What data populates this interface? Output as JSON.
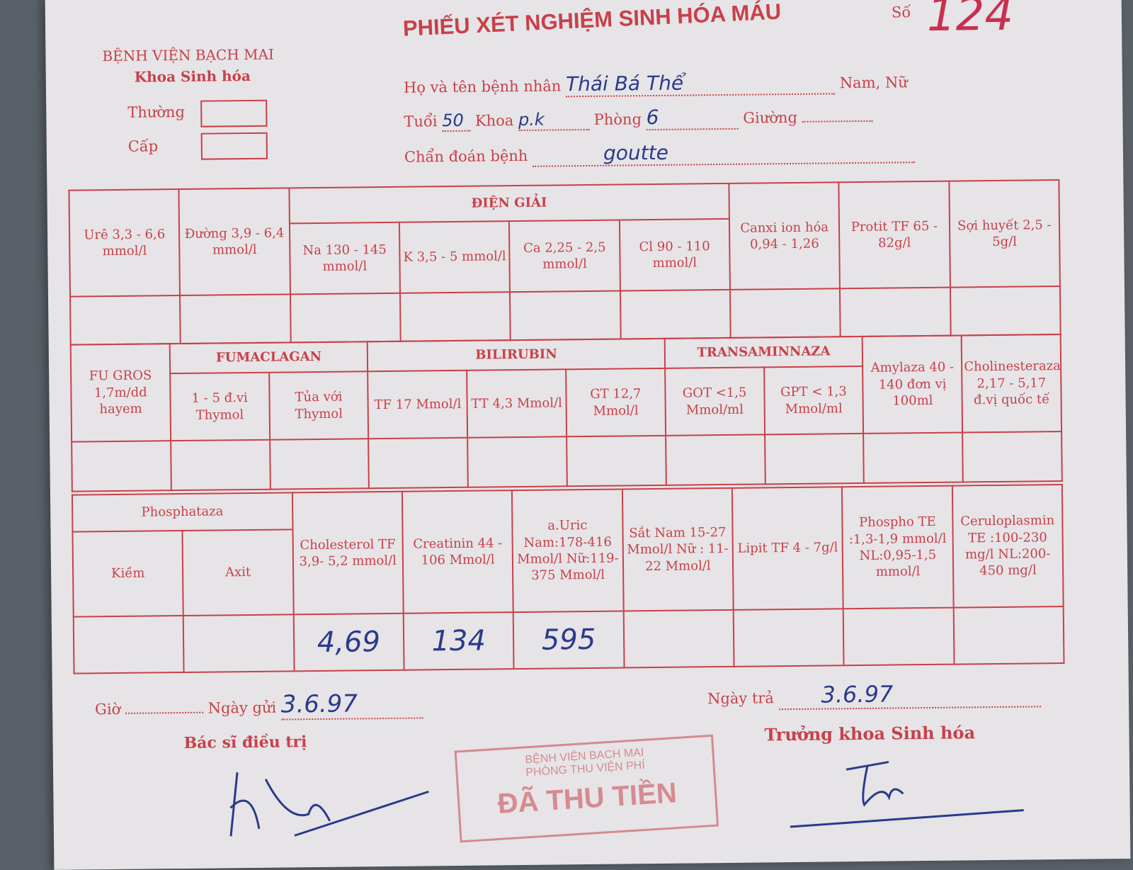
{
  "header": {
    "hospital": "BỆNH VIỆN BẠCH MAI",
    "department": "Khoa Sinh hóa",
    "priority_normal": "Thường",
    "priority_urgent": "Cấp",
    "title": "PHIẾU XÉT NGHIỆM SINH HÓA MÁU",
    "number_label": "Số",
    "number_value": "124"
  },
  "patient": {
    "name_label": "Họ và tên bệnh nhân",
    "name_value": "Thái Bá Thể",
    "sex_label": "Nam, Nữ",
    "age_label": "Tuổi",
    "age_value": "50",
    "dept_label": "Khoa",
    "dept_value": "p.k",
    "room_label": "Phòng",
    "room_value": "6",
    "bed_label": "Giường",
    "diagnosis_label": "Chẩn đoán bệnh",
    "diagnosis_value": "goutte"
  },
  "stamp": {
    "line1": "BỆNH VIỆN BẠCH MAI",
    "line2": "PHÒNG THU VIỆN PHÍ",
    "line3": "ĐÃ THU TIỀN"
  },
  "band1": {
    "ure": "Urê 3,3 - 6,6 mmol/l",
    "duong": "Đường 3,9 - 6,4 mmol/l",
    "dien_giai": "ĐIỆN GIẢI",
    "na": "Na 130 - 145 mmol/l",
    "k": "K 3,5 - 5 mmol/l",
    "ca": "Ca 2,25 - 2,5 mmol/l",
    "cl": "Cl 90 - 110 mmol/l",
    "canxi": "Canxi ion hóa 0,94 - 1,26",
    "protit": "Protit TF 65 - 82g/l",
    "soi_huyet": "Sợi huyết 2,5 - 5g/l"
  },
  "band2": {
    "fu_gros": "FU GROS 1,7m/dd hayem",
    "fumaclagan": "FUMACLAGAN",
    "bilirubin": "BILIRUBIN",
    "transaminnaza": "TRANSAMINNAZA",
    "amylaza": "Amylaza 40 - 140 đơn vị 100ml",
    "cholinesteraza": "Cholinesteraza 2,17 - 5,17 đ.vị quốc tế",
    "thymol1": "1 - 5 đ.vi Thymol",
    "thymol2": "Tủa với Thymol",
    "tf": "TF 17 Mmol/l",
    "tt": "TT 4,3 Mmol/l",
    "gt": "GT 12,7 Mmol/l",
    "got": "GOT <1,5 Mmol/ml",
    "gpt": "GPT < 1,3 Mmol/ml"
  },
  "band3": {
    "phosphataza": "Phosphataza",
    "kiem": "Kiềm",
    "axit": "Axit",
    "cholesterol": "Cholesterol TF 3,9- 5,2 mmol/l",
    "creatinin": "Creatinin 44 - 106 Mmol/l",
    "uric": "a.Uric Nam:178-416 Mmol/l Nữ:119-375 Mmol/l",
    "sat": "Sắt Nam 15-27 Mmol/l Nữ : 11-22 Mmol/l",
    "lipit": "Lipit TF 4 - 7g/l",
    "phospho": "Phospho TE :1,3-1,9 mmol/l NL:0,95-1,5 mmol/l",
    "ceruloplasmin": "Ceruloplasmin TE :100-230 mg/l NL:200-450 mg/l"
  },
  "results": {
    "cholesterol": "4,69",
    "creatinin": "134",
    "uric": "595"
  },
  "footer": {
    "time_label": "Giờ",
    "sent_label": "Ngày gửi",
    "sent_value": "3.6.97",
    "doctor_label": "Bác sĩ điều trị",
    "return_label": "Ngày trả",
    "return_value": "3.6.97",
    "head_label": "Trưởng khoa Sinh hóa"
  },
  "colors": {
    "form_red": "#c8404a",
    "ink_blue": "#2a3a8c",
    "paper": "#e6e4e6"
  }
}
